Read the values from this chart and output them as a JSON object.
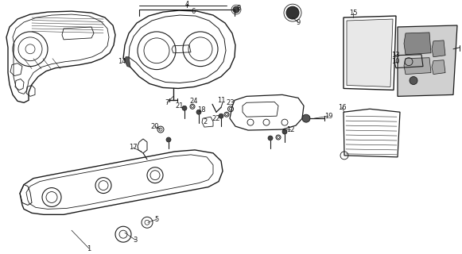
{
  "bg_color": "#ffffff",
  "line_color": "#1a1a1a",
  "fig_width": 5.81,
  "fig_height": 3.2,
  "dpi": 100,
  "label_fontsize": 6.0
}
